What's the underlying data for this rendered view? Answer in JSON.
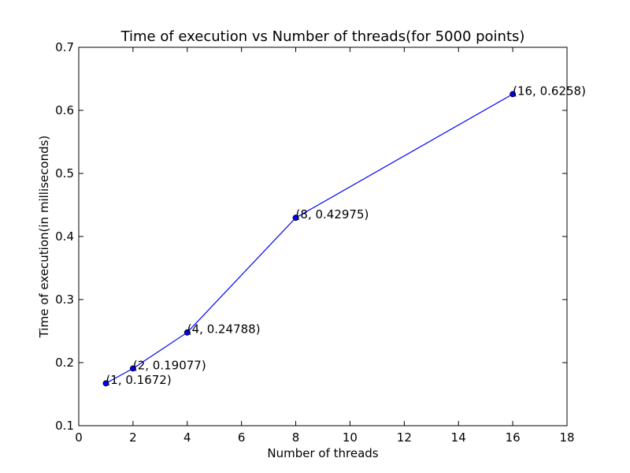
{
  "chart_data": {
    "type": "line",
    "title": "Time of execution vs Number of threads(for 5000 points)",
    "xlabel": "Number of threads",
    "ylabel": "Time of execution(in milliseconds)",
    "xlim": [
      0,
      18
    ],
    "ylim": [
      0.1,
      0.7
    ],
    "xticks": [
      "0",
      "2",
      "4",
      "6",
      "8",
      "10",
      "12",
      "14",
      "16",
      "18"
    ],
    "yticks": [
      "0.1",
      "0.2",
      "0.3",
      "0.4",
      "0.5",
      "0.6",
      "0.7"
    ],
    "grid": false,
    "series": [
      {
        "x": [
          1,
          2,
          4,
          8,
          16
        ],
        "y": [
          0.1672,
          0.19077,
          0.24788,
          0.42975,
          0.6258
        ],
        "color": "#0000ff",
        "marker": "circle"
      }
    ],
    "annotations": [
      "(1, 0.1672)",
      "(2, 0.19077)",
      "(4, 0.24788)",
      "(8, 0.42975)",
      "(16, 0.6258)"
    ]
  }
}
